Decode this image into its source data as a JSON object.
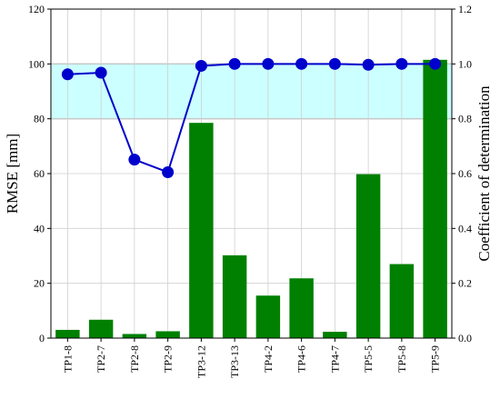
{
  "chart_data": {
    "type": "bar",
    "categories": [
      "TP1-8",
      "TP2-7",
      "TP2-8",
      "TP2-9",
      "TP3-12",
      "TP3-13",
      "TP4-2",
      "TP4-6",
      "TP4-7",
      "TP5-5",
      "TP5-8",
      "TP5-9"
    ],
    "series": [
      {
        "name": "RMSE",
        "type": "bar",
        "axis": "left",
        "color": "#008000",
        "values": [
          3.0,
          6.7,
          1.5,
          2.5,
          78.5,
          30.2,
          15.5,
          21.8,
          2.3,
          59.8,
          27.0,
          101.5
        ]
      },
      {
        "name": "R²",
        "type": "line",
        "axis": "right",
        "color": "#0000cc",
        "marker": "circle",
        "values": [
          0.962,
          0.968,
          0.651,
          0.605,
          0.993,
          1.0,
          1.0,
          1.0,
          1.0,
          0.997,
          1.0,
          1.0
        ]
      }
    ],
    "ylabel": "RMSE [mm]",
    "y2label": "Coefficient of determination",
    "ylim": [
      0,
      120
    ],
    "y2lim": [
      0,
      1.2
    ],
    "yticks": [
      "0",
      "20",
      "40",
      "60",
      "80",
      "100",
      "120"
    ],
    "y2ticks": [
      "0.0",
      "0.2",
      "0.4",
      "0.6",
      "0.8",
      "1.0",
      "1.2"
    ],
    "highlight_band": {
      "y2_from": 0.8,
      "y2_to": 1.0,
      "color": "#ccffff"
    },
    "grid": true
  }
}
